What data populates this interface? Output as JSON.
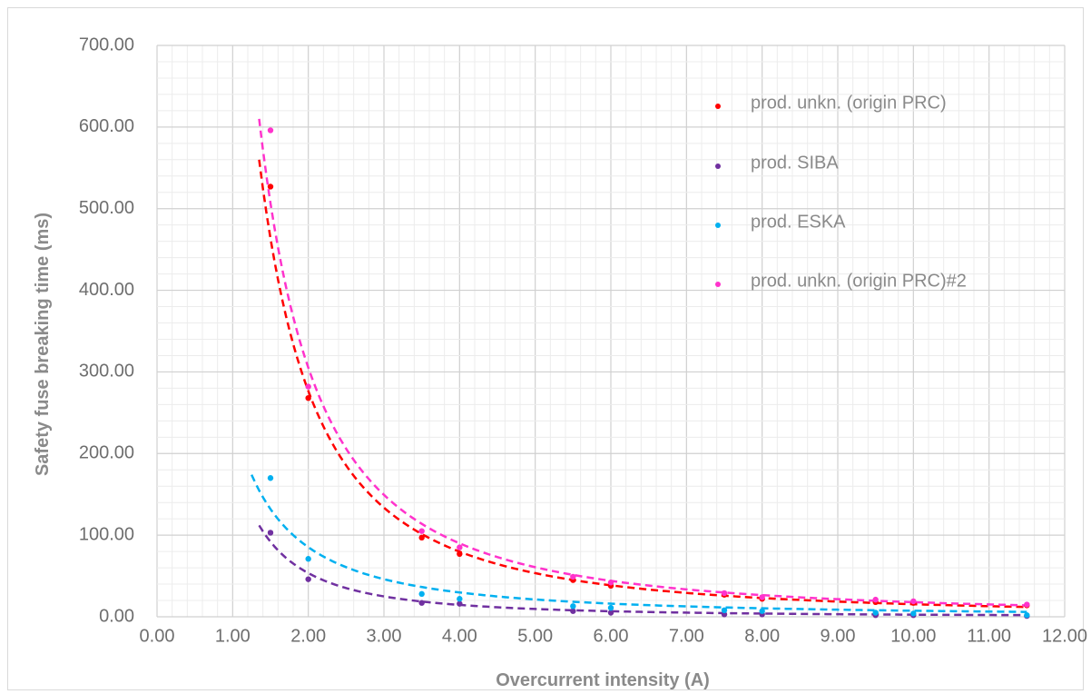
{
  "chart_data": {
    "type": "scatter",
    "title": "",
    "xlabel": "Overcurrent intensity (A)",
    "ylabel": "Safety fuse breaking time (ms)",
    "xlim": [
      0,
      12
    ],
    "ylim": [
      0,
      700
    ],
    "x_ticks": [
      "0.00",
      "1.00",
      "2.00",
      "3.00",
      "4.00",
      "5.00",
      "6.00",
      "7.00",
      "8.00",
      "9.00",
      "10.00",
      "11.00",
      "12.00"
    ],
    "y_ticks": [
      "0.00",
      "100.00",
      "200.00",
      "300.00",
      "400.00",
      "500.00",
      "600.00",
      "700.00"
    ],
    "grid": "major and minor",
    "legend_position": "top-right",
    "series": [
      {
        "name": "prod. unkn. (origin PRC)",
        "color": "#ff0000",
        "x": [
          1.5,
          2.0,
          3.5,
          4.0,
          5.5,
          6.0,
          7.5,
          8.0,
          9.5,
          10.0,
          11.5
        ],
        "y": [
          527,
          268,
          97,
          77,
          45,
          38,
          27,
          22,
          18,
          17,
          14
        ],
        "trendline": {
          "style": "dashed",
          "x_range": [
            1.35,
            11.5
          ],
          "y_range": [
            560,
            12
          ]
        }
      },
      {
        "name": "prod. SIBA",
        "color": "#7030a0",
        "x": [
          1.5,
          2.0,
          3.5,
          4.0,
          5.5,
          6.0,
          7.5,
          8.0,
          9.5,
          10.0,
          11.5
        ],
        "y": [
          103,
          46,
          17,
          16,
          7,
          5,
          3,
          3,
          2,
          2,
          1
        ],
        "trendline": {
          "style": "dashed",
          "x_range": [
            1.35,
            11.5
          ],
          "y_range": [
            112,
            2
          ]
        }
      },
      {
        "name": "prod. ESKA",
        "color": "#00b0f0",
        "x": [
          1.5,
          2.0,
          3.5,
          4.0,
          5.5,
          6.0,
          7.5,
          8.0,
          9.5,
          10.0,
          11.5
        ],
        "y": [
          170,
          71,
          28,
          22,
          13,
          11,
          8,
          7,
          5,
          4,
          2
        ],
        "trendline": {
          "style": "dashed",
          "x_range": [
            1.25,
            11.5
          ],
          "y_range": [
            174,
            6
          ]
        }
      },
      {
        "name": "prod. unkn. (origin PRC)#2",
        "color": "#ff33cc",
        "x": [
          1.5,
          2.0,
          3.5,
          4.0,
          5.5,
          6.0,
          7.5,
          8.0,
          9.5,
          10.0,
          11.5
        ],
        "y": [
          596,
          282,
          105,
          85,
          49,
          42,
          29,
          24,
          21,
          19,
          15
        ],
        "trendline": {
          "style": "dashed",
          "x_range": [
            1.35,
            11.5
          ],
          "y_range": [
            610,
            14
          ]
        }
      }
    ]
  }
}
